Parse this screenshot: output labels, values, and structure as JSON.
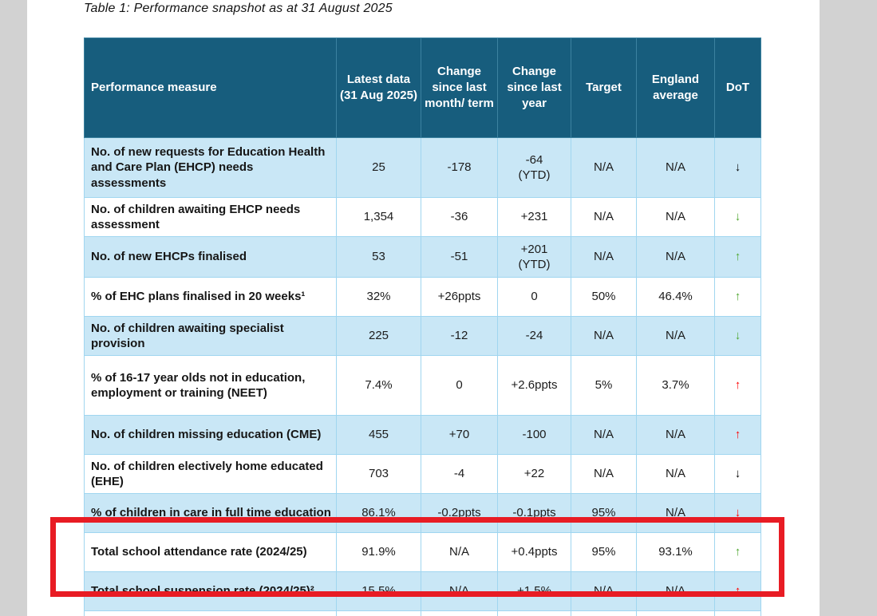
{
  "page": {
    "title": "Table 1: Performance snapshot as at 31 August 2025"
  },
  "table": {
    "columns": [
      "Performance measure",
      "Latest data (31 Aug 2025)",
      "Change since last month/ term",
      "Change since last year",
      "Target",
      "England average",
      "DoT"
    ],
    "rows": [
      {
        "measure": "No. of new requests for Education Health and Care Plan (EHCP) needs assessments",
        "latest": "25",
        "change_month": "-178",
        "change_year": "-64\n(YTD)",
        "target": "N/A",
        "england": "N/A",
        "arrow": "↓",
        "arrow_dir": "down",
        "arrow_color": "#000000"
      },
      {
        "measure": "No. of children awaiting EHCP needs assessment",
        "latest": "1,354",
        "change_month": "-36",
        "change_year": "+231",
        "target": "N/A",
        "england": "N/A",
        "arrow": "↓",
        "arrow_dir": "down",
        "arrow_color": "#4ea72e"
      },
      {
        "measure": "No. of new EHCPs finalised",
        "latest": "53",
        "change_month": "-51",
        "change_year": "+201\n(YTD)",
        "target": "N/A",
        "england": "N/A",
        "arrow": "↑",
        "arrow_dir": "up",
        "arrow_color": "#4ea72e"
      },
      {
        "measure": "% of EHC plans finalised in 20 weeks¹",
        "latest": "32%",
        "change_month": "+26ppts",
        "change_year": "0",
        "target": "50%",
        "england": "46.4%",
        "arrow": "↑",
        "arrow_dir": "up",
        "arrow_color": "#4ea72e"
      },
      {
        "measure": "No. of children awaiting specialist provision",
        "latest": "225",
        "change_month": "-12",
        "change_year": "-24",
        "target": "N/A",
        "england": "N/A",
        "arrow": "↓",
        "arrow_dir": "down",
        "arrow_color": "#4ea72e"
      },
      {
        "measure": "% of 16-17 year olds not in education, employment or training (NEET)",
        "latest": "7.4%",
        "change_month": "0",
        "change_year": "+2.6ppts",
        "target": "5%",
        "england": "3.7%",
        "arrow": "↑",
        "arrow_dir": "up",
        "arrow_color": "#fe0000"
      },
      {
        "measure": "No. of children missing education (CME)",
        "latest": "455",
        "change_month": "+70",
        "change_year": "-100",
        "target": "N/A",
        "england": "N/A",
        "arrow": "↑",
        "arrow_dir": "up",
        "arrow_color": "#fe0000"
      },
      {
        "measure": "No. of children electively home educated (EHE)",
        "latest": "703",
        "change_month": "-4",
        "change_year": "+22",
        "target": "N/A",
        "england": "N/A",
        "arrow": "↓",
        "arrow_dir": "down",
        "arrow_color": "#000000"
      },
      {
        "measure": "% of children in care in full time education",
        "latest": "86.1%",
        "change_month": "-0.2ppts",
        "change_year": "-0.1ppts",
        "target": "95%",
        "england": "N/A",
        "arrow": "↓",
        "arrow_dir": "down",
        "arrow_color": "#fe0000"
      },
      {
        "measure": "Total school attendance rate (2024/25)",
        "latest": "91.9%",
        "change_month": "N/A",
        "change_year": "+0.4ppts",
        "target": "95%",
        "england": "93.1%",
        "arrow": "↑",
        "arrow_dir": "up",
        "arrow_color": "#4ea72e"
      },
      {
        "measure": "Total school suspension rate (2024/25)²",
        "latest": "15.5%",
        "change_month": "N/A",
        "change_year": "+1.5%",
        "target": "N/A",
        "england": "N/A",
        "arrow": "↑",
        "arrow_dir": "up",
        "arrow_color": "#fe0000"
      },
      {
        "measure": "",
        "latest": "",
        "change_month": "",
        "change_year": "",
        "target": "",
        "england": "",
        "arrow": "",
        "arrow_dir": "",
        "arrow_color": "#000000"
      }
    ]
  },
  "annotation": {
    "shape": "red-highlight-rectangle",
    "color": "#e81c24",
    "highlights": [
      "Total school attendance rate (2024/25)",
      "Total school suspension rate (2024/25)²"
    ]
  },
  "colors": {
    "header_bg": "#175d7d",
    "row_alt_bg": "#c9e7f6",
    "cell_border": "#a0d6f0",
    "green_arrow": "#4ea72e",
    "red_arrow": "#fe0000"
  }
}
